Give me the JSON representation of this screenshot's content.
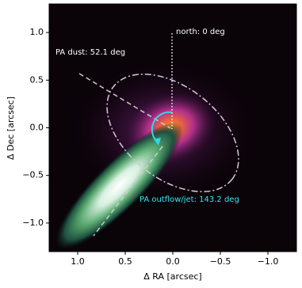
{
  "chart_data": {
    "type": "image",
    "xlabel": "Δ RA [arcsec]",
    "ylabel": "Δ Dec [arcsec]",
    "xlim": [
      1.3,
      -1.3
    ],
    "ylim": [
      -1.3,
      1.3
    ],
    "xticks": [
      {
        "value": 1.0,
        "label": "1.0"
      },
      {
        "value": 0.5,
        "label": "0.5"
      },
      {
        "value": 0.0,
        "label": "0.0"
      },
      {
        "value": -0.5,
        "label": "−0.5"
      },
      {
        "value": -1.0,
        "label": "−1.0"
      }
    ],
    "yticks": [
      {
        "value": -1.0,
        "label": "−1.0"
      },
      {
        "value": -0.5,
        "label": "−0.5"
      },
      {
        "value": 0.0,
        "label": "0.0"
      },
      {
        "value": 0.5,
        "label": "0.5"
      },
      {
        "value": 1.0,
        "label": "1.0"
      }
    ],
    "annotations": [
      "north: 0 deg",
      "PA dust: 52.1 deg",
      "PA outflow/jet: 143.2  deg"
    ]
  }
}
